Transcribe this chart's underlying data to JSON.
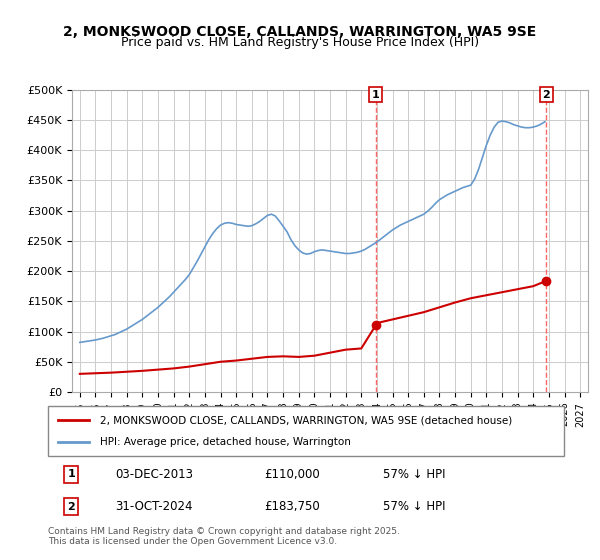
{
  "title_line1": "2, MONKSWOOD CLOSE, CALLANDS, WARRINGTON, WA5 9SE",
  "title_line2": "Price paid vs. HM Land Registry's House Price Index (HPI)",
  "title_fontsize": 10,
  "subtitle_fontsize": 9,
  "ylabel": "",
  "ylim": [
    0,
    500000
  ],
  "yticks": [
    0,
    50000,
    100000,
    150000,
    200000,
    250000,
    300000,
    350000,
    400000,
    450000,
    500000
  ],
  "ytick_labels": [
    "£0",
    "£50K",
    "£100K",
    "£150K",
    "£200K",
    "£250K",
    "£300K",
    "£350K",
    "£400K",
    "£450K",
    "£500K"
  ],
  "xlim_start": 1994.5,
  "xlim_end": 2027.5,
  "xtick_years": [
    1995,
    1996,
    1997,
    1998,
    1999,
    2000,
    2001,
    2002,
    2003,
    2004,
    2005,
    2006,
    2007,
    2008,
    2009,
    2010,
    2011,
    2012,
    2013,
    2014,
    2015,
    2016,
    2017,
    2018,
    2019,
    2020,
    2021,
    2022,
    2023,
    2024,
    2025,
    2026,
    2027
  ],
  "sale1_x": 2013.92,
  "sale1_y": 110000,
  "sale1_label": "1",
  "sale1_date": "03-DEC-2013",
  "sale1_price": "£110,000",
  "sale1_hpi": "57% ↓ HPI",
  "sale2_x": 2024.83,
  "sale2_y": 183750,
  "sale2_label": "2",
  "sale2_date": "31-OCT-2024",
  "sale2_price": "£183,750",
  "sale2_hpi": "57% ↓ HPI",
  "red_line_color": "#cc0000",
  "blue_line_color": "#6699cc",
  "vline_color": "#ff6666",
  "grid_color": "#cccccc",
  "background_color": "#ffffff",
  "legend1_text": "2, MONKSWOOD CLOSE, CALLANDS, WARRINGTON, WA5 9SE (detached house)",
  "legend2_text": "HPI: Average price, detached house, Warrington",
  "footer_text": "Contains HM Land Registry data © Crown copyright and database right 2025.\nThis data is licensed under the Open Government Licence v3.0.",
  "hpi_blue_x": [
    1995.0,
    1995.25,
    1995.5,
    1995.75,
    1996.0,
    1996.25,
    1996.5,
    1996.75,
    1997.0,
    1997.25,
    1997.5,
    1997.75,
    1998.0,
    1998.25,
    1998.5,
    1998.75,
    1999.0,
    1999.25,
    1999.5,
    1999.75,
    2000.0,
    2000.25,
    2000.5,
    2000.75,
    2001.0,
    2001.25,
    2001.5,
    2001.75,
    2002.0,
    2002.25,
    2002.5,
    2002.75,
    2003.0,
    2003.25,
    2003.5,
    2003.75,
    2004.0,
    2004.25,
    2004.5,
    2004.75,
    2005.0,
    2005.25,
    2005.5,
    2005.75,
    2006.0,
    2006.25,
    2006.5,
    2006.75,
    2007.0,
    2007.25,
    2007.5,
    2007.75,
    2008.0,
    2008.25,
    2008.5,
    2008.75,
    2009.0,
    2009.25,
    2009.5,
    2009.75,
    2010.0,
    2010.25,
    2010.5,
    2010.75,
    2011.0,
    2011.25,
    2011.5,
    2011.75,
    2012.0,
    2012.25,
    2012.5,
    2012.75,
    2013.0,
    2013.25,
    2013.5,
    2013.75,
    2014.0,
    2014.25,
    2014.5,
    2014.75,
    2015.0,
    2015.25,
    2015.5,
    2015.75,
    2016.0,
    2016.25,
    2016.5,
    2016.75,
    2017.0,
    2017.25,
    2017.5,
    2017.75,
    2018.0,
    2018.25,
    2018.5,
    2018.75,
    2019.0,
    2019.25,
    2019.5,
    2019.75,
    2020.0,
    2020.25,
    2020.5,
    2020.75,
    2021.0,
    2021.25,
    2021.5,
    2021.75,
    2022.0,
    2022.25,
    2022.5,
    2022.75,
    2023.0,
    2023.25,
    2023.5,
    2023.75,
    2024.0,
    2024.25,
    2024.5,
    2024.75
  ],
  "hpi_blue_y": [
    82000,
    83000,
    84000,
    85000,
    86000,
    87500,
    89000,
    91000,
    93000,
    95000,
    98000,
    101000,
    104000,
    108000,
    112000,
    116000,
    120000,
    125000,
    130000,
    135000,
    140000,
    146000,
    152000,
    158000,
    165000,
    172000,
    179000,
    186000,
    194000,
    205000,
    216000,
    228000,
    240000,
    252000,
    262000,
    270000,
    276000,
    279000,
    280000,
    279000,
    277000,
    276000,
    275000,
    274000,
    275000,
    278000,
    282000,
    287000,
    292000,
    294000,
    291000,
    283000,
    274000,
    265000,
    252000,
    242000,
    235000,
    230000,
    228000,
    229000,
    232000,
    234000,
    235000,
    234000,
    233000,
    232000,
    231000,
    230000,
    229000,
    229000,
    230000,
    231000,
    233000,
    236000,
    240000,
    244000,
    248000,
    253000,
    258000,
    263000,
    268000,
    272000,
    276000,
    279000,
    282000,
    285000,
    288000,
    291000,
    294000,
    299000,
    305000,
    312000,
    318000,
    322000,
    326000,
    329000,
    332000,
    335000,
    338000,
    340000,
    342000,
    352000,
    368000,
    388000,
    408000,
    425000,
    438000,
    446000,
    448000,
    447000,
    445000,
    442000,
    440000,
    438000,
    437000,
    437000,
    438000,
    440000,
    443000,
    447000
  ],
  "red_prop_x": [
    1995.0,
    1996.0,
    1997.0,
    1998.0,
    1999.0,
    2000.0,
    2001.0,
    2002.0,
    2003.0,
    2004.0,
    2005.0,
    2006.0,
    2007.0,
    2008.0,
    2009.0,
    2010.0,
    2011.0,
    2012.0,
    2013.0,
    2013.92,
    2014.0,
    2015.0,
    2016.0,
    2017.0,
    2018.0,
    2019.0,
    2020.0,
    2021.0,
    2022.0,
    2023.0,
    2024.0,
    2024.83
  ],
  "red_prop_y": [
    30000,
    31000,
    32000,
    33500,
    35000,
    37000,
    39000,
    42000,
    46000,
    50000,
    52000,
    55000,
    58000,
    59000,
    58000,
    60000,
    65000,
    70000,
    72000,
    110000,
    114000,
    120000,
    126000,
    132000,
    140000,
    148000,
    155000,
    160000,
    165000,
    170000,
    175000,
    183750
  ]
}
